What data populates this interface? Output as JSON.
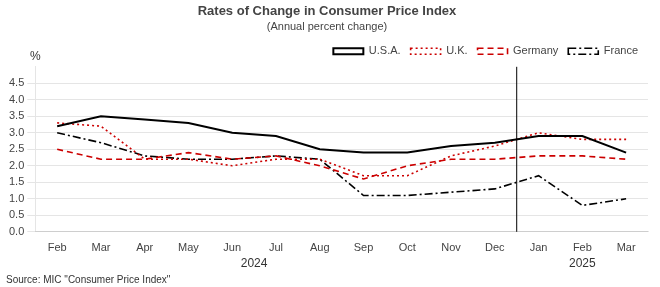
{
  "chart_data": {
    "type": "line",
    "title": "Rates of Change in Consumer Price Index",
    "subtitle": "(Annual percent change)",
    "ylabel": "%",
    "source": "Source: MIC \"Consumer Price Index\"",
    "categories": [
      "Feb",
      "Mar",
      "Apr",
      "May",
      "Jun",
      "Jul",
      "Aug",
      "Sep",
      "Oct",
      "Nov",
      "Dec",
      "Jan",
      "Feb",
      "Mar"
    ],
    "series": [
      {
        "name": "U.S.A.",
        "color": "#000000",
        "line_style": "solid",
        "values": [
          3.2,
          3.5,
          3.4,
          3.3,
          3.0,
          2.9,
          2.5,
          2.4,
          2.4,
          2.6,
          2.7,
          2.9,
          2.9,
          2.4
        ]
      },
      {
        "name": "U.K.",
        "color": "#cc0000",
        "line_style": "dotted",
        "values": [
          3.3,
          3.2,
          2.2,
          2.2,
          2.0,
          2.2,
          2.2,
          1.7,
          1.7,
          2.3,
          2.6,
          3.0,
          2.8,
          2.8
        ]
      },
      {
        "name": "Germany",
        "color": "#cc0000",
        "line_style": "dashed",
        "values": [
          2.5,
          2.2,
          2.2,
          2.4,
          2.2,
          2.3,
          2.0,
          1.6,
          2.0,
          2.2,
          2.2,
          2.3,
          2.3,
          2.2
        ]
      },
      {
        "name": "France",
        "color": "#000000",
        "line_style": "dashdot",
        "values": [
          3.0,
          2.7,
          2.3,
          2.2,
          2.2,
          2.3,
          2.2,
          1.1,
          1.1,
          1.2,
          1.3,
          1.7,
          0.8,
          1.0
        ]
      }
    ],
    "annotations": [
      {
        "text": "2024",
        "x": 4.5
      },
      {
        "text": "2025",
        "x": 12.0
      }
    ],
    "year_divider": 10.5,
    "ylim": [
      0.0,
      5.0
    ],
    "yticks": [
      {
        "value": 0.0,
        "label": "0.0"
      },
      0.5,
      {
        "value": 1.0,
        "label": "1.0"
      },
      1.5,
      {
        "value": 2.0,
        "label": "2.0"
      },
      2.5,
      {
        "value": 3.0,
        "label": "3.0"
      },
      3.5,
      {
        "value": 4.0,
        "label": "4.0"
      },
      4.5
    ],
    "grid": "y",
    "legend": "upper right"
  }
}
